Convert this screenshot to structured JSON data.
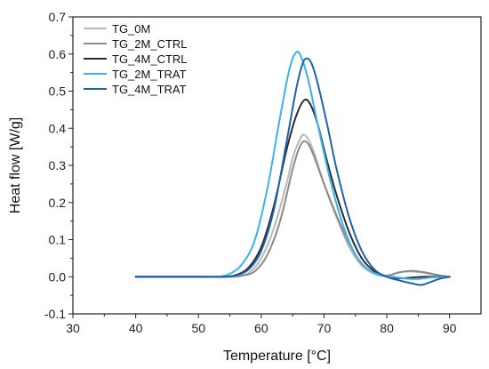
{
  "chart_data": {
    "type": "line",
    "title": "",
    "xlabel": "Temperature [°C]",
    "ylabel": "Heat flow [W/g]",
    "xlim": [
      30,
      95
    ],
    "ylim": [
      -0.1,
      0.7
    ],
    "x_ticks": [
      30,
      40,
      50,
      60,
      70,
      80,
      90
    ],
    "y_ticks": [
      -0.1,
      0.0,
      0.1,
      0.2,
      0.3,
      0.4,
      0.5,
      0.6,
      0.7
    ],
    "x_tick_labels": [
      "30",
      "40",
      "50",
      "60",
      "70",
      "80",
      "90"
    ],
    "y_tick_labels": [
      "-0.1",
      "0.0",
      "0.1",
      "0.2",
      "0.3",
      "0.4",
      "0.5",
      "0.6",
      "0.7"
    ],
    "grid": false,
    "legend_position": "top-left",
    "series": [
      {
        "name": "TG_0M",
        "color": "#b8b8b8",
        "points": [
          [
            40,
            0.0
          ],
          [
            50,
            0.0
          ],
          [
            54,
            0.0
          ],
          [
            56,
            0.002
          ],
          [
            58,
            0.01
          ],
          [
            60,
            0.05
          ],
          [
            62,
            0.13
          ],
          [
            64,
            0.25
          ],
          [
            65,
            0.32
          ],
          [
            66,
            0.365
          ],
          [
            66.7,
            0.383
          ],
          [
            67.5,
            0.37
          ],
          [
            68.5,
            0.33
          ],
          [
            70,
            0.25
          ],
          [
            72,
            0.16
          ],
          [
            74,
            0.08
          ],
          [
            76,
            0.03
          ],
          [
            78,
            0.008
          ],
          [
            80,
            0.002
          ],
          [
            82,
            0.012
          ],
          [
            84,
            0.014
          ],
          [
            86,
            0.01
          ],
          [
            88,
            0.004
          ],
          [
            90,
            0.0
          ]
        ]
      },
      {
        "name": "TG_2M_CTRL",
        "color": "#8a8a8a",
        "points": [
          [
            40,
            0.0
          ],
          [
            50,
            0.0
          ],
          [
            55,
            0.0
          ],
          [
            57,
            0.003
          ],
          [
            59,
            0.015
          ],
          [
            61,
            0.06
          ],
          [
            63,
            0.15
          ],
          [
            65,
            0.29
          ],
          [
            66,
            0.345
          ],
          [
            66.8,
            0.365
          ],
          [
            67.6,
            0.355
          ],
          [
            68.5,
            0.32
          ],
          [
            70,
            0.25
          ],
          [
            72,
            0.165
          ],
          [
            74,
            0.09
          ],
          [
            76,
            0.035
          ],
          [
            78,
            0.01
          ],
          [
            80,
            0.003
          ],
          [
            82,
            0.012
          ],
          [
            84,
            0.016
          ],
          [
            86,
            0.012
          ],
          [
            88,
            0.005
          ],
          [
            90,
            0.0
          ]
        ]
      },
      {
        "name": "TG_4M_CTRL",
        "color": "#2b2b2b",
        "points": [
          [
            40,
            0.0
          ],
          [
            50,
            0.0
          ],
          [
            54,
            0.0
          ],
          [
            56,
            0.005
          ],
          [
            58,
            0.025
          ],
          [
            60,
            0.08
          ],
          [
            62,
            0.19
          ],
          [
            64,
            0.34
          ],
          [
            65.5,
            0.43
          ],
          [
            66.8,
            0.475
          ],
          [
            67.8,
            0.465
          ],
          [
            69,
            0.41
          ],
          [
            70.5,
            0.31
          ],
          [
            72,
            0.22
          ],
          [
            74,
            0.12
          ],
          [
            76,
            0.05
          ],
          [
            78,
            0.015
          ],
          [
            80,
            0.0
          ],
          [
            82,
            -0.004
          ],
          [
            84,
            -0.002
          ],
          [
            86,
            0.0
          ],
          [
            88,
            0.0
          ],
          [
            90,
            0.0
          ]
        ]
      },
      {
        "name": "TG_2M_TRAT",
        "color": "#3fb0ea",
        "points": [
          [
            40,
            0.0
          ],
          [
            50,
            0.0
          ],
          [
            53,
            0.0
          ],
          [
            55,
            0.008
          ],
          [
            57,
            0.035
          ],
          [
            59,
            0.1
          ],
          [
            61,
            0.24
          ],
          [
            63,
            0.43
          ],
          [
            64.5,
            0.56
          ],
          [
            65.6,
            0.605
          ],
          [
            66.4,
            0.59
          ],
          [
            67.5,
            0.53
          ],
          [
            69,
            0.41
          ],
          [
            71,
            0.26
          ],
          [
            73,
            0.14
          ],
          [
            75,
            0.06
          ],
          [
            77,
            0.02
          ],
          [
            79,
            0.004
          ],
          [
            81,
            0.0
          ],
          [
            83,
            -0.005
          ],
          [
            85,
            -0.006
          ],
          [
            87,
            -0.002
          ],
          [
            90,
            0.0
          ]
        ]
      },
      {
        "name": "TG_4M_TRAT",
        "color": "#1f63a6",
        "points": [
          [
            40,
            0.0
          ],
          [
            50,
            0.0
          ],
          [
            54,
            0.0
          ],
          [
            56,
            0.004
          ],
          [
            58,
            0.02
          ],
          [
            60,
            0.07
          ],
          [
            62,
            0.18
          ],
          [
            64,
            0.36
          ],
          [
            65.5,
            0.5
          ],
          [
            66.5,
            0.57
          ],
          [
            67.2,
            0.588
          ],
          [
            68,
            0.575
          ],
          [
            69,
            0.52
          ],
          [
            70.5,
            0.41
          ],
          [
            72,
            0.29
          ],
          [
            74,
            0.16
          ],
          [
            76,
            0.07
          ],
          [
            78,
            0.02
          ],
          [
            80,
            0.0
          ],
          [
            82,
            -0.01
          ],
          [
            84,
            -0.018
          ],
          [
            85.5,
            -0.022
          ],
          [
            87,
            -0.014
          ],
          [
            88.5,
            -0.005
          ],
          [
            90,
            0.0
          ]
        ]
      }
    ]
  }
}
